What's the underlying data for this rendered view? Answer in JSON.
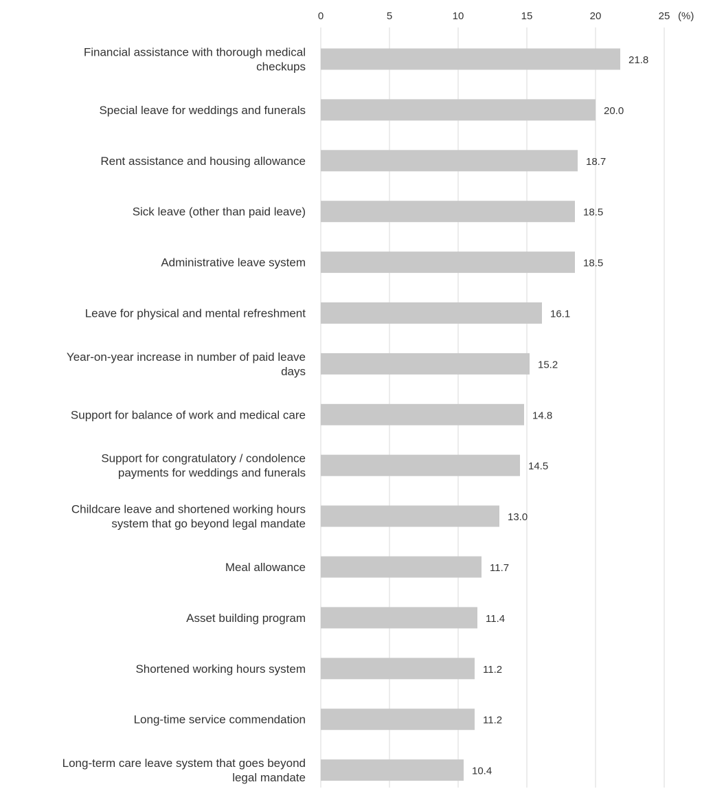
{
  "chart_data": {
    "type": "bar",
    "orientation": "horizontal",
    "unit": "(%)",
    "xlim": [
      0,
      25
    ],
    "ticks": [
      0,
      5,
      10,
      15,
      20,
      25
    ],
    "grid": true,
    "colors": {
      "bar": "#c8c8c8",
      "grid": "#d9d9d9",
      "text": "#333333"
    },
    "categories": [
      [
        "Financial assistance with thorough medical",
        "checkups"
      ],
      [
        "Special leave for weddings and funerals"
      ],
      [
        "Rent assistance and housing allowance"
      ],
      [
        "Sick leave (other than paid leave)"
      ],
      [
        "Administrative leave system"
      ],
      [
        "Leave for physical and mental refreshment"
      ],
      [
        "Year-on-year increase in number of paid leave",
        "days"
      ],
      [
        "Support for balance of work and medical care"
      ],
      [
        "Support for congratulatory / condolence",
        "payments for weddings and funerals"
      ],
      [
        "Childcare leave and shortened working hours",
        "system that go beyond legal mandate"
      ],
      [
        "Meal allowance"
      ],
      [
        "Asset building program"
      ],
      [
        "Shortened working hours system"
      ],
      [
        "Long-time service commendation"
      ],
      [
        "Long-term care leave system that goes beyond",
        "legal mandate"
      ]
    ],
    "values": [
      21.8,
      20.0,
      18.7,
      18.5,
      18.5,
      16.1,
      15.2,
      14.8,
      14.5,
      13.0,
      11.7,
      11.4,
      11.2,
      11.2,
      10.4
    ],
    "value_labels": [
      "21.8",
      "20.0",
      "18.7",
      "18.5",
      "18.5",
      "16.1",
      "15.2",
      "14.8",
      "14.5",
      "13.0",
      "11.7",
      "11.4",
      "11.2",
      "11.2",
      "10.4"
    ]
  }
}
